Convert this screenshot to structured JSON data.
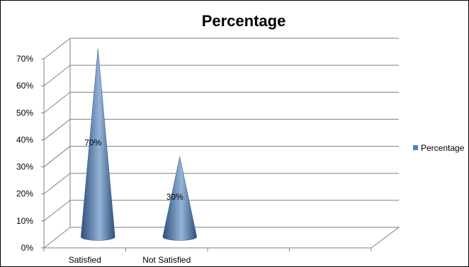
{
  "chart_data": {
    "type": "bar",
    "style": "3d-cone",
    "title": "Percentage",
    "xlabel": "",
    "ylabel": "",
    "categories": [
      "Satisfied",
      "Not Satisfied"
    ],
    "series": [
      {
        "name": "Percentage",
        "values": [
          0.7,
          0.3
        ],
        "data_labels": [
          "70%",
          "30%"
        ]
      }
    ],
    "ylim": [
      0,
      0.7
    ],
    "y_ticks": [
      "0%",
      "10%",
      "20%",
      "30%",
      "40%",
      "50%",
      "60%",
      "70%"
    ],
    "x_slots": 4,
    "grid": true,
    "legend": "right",
    "colors": {
      "series": "#4f81bd",
      "series_dark": "#2c4f7c",
      "series_light": "#95b3d7",
      "grid": "#7f7f7f"
    }
  }
}
